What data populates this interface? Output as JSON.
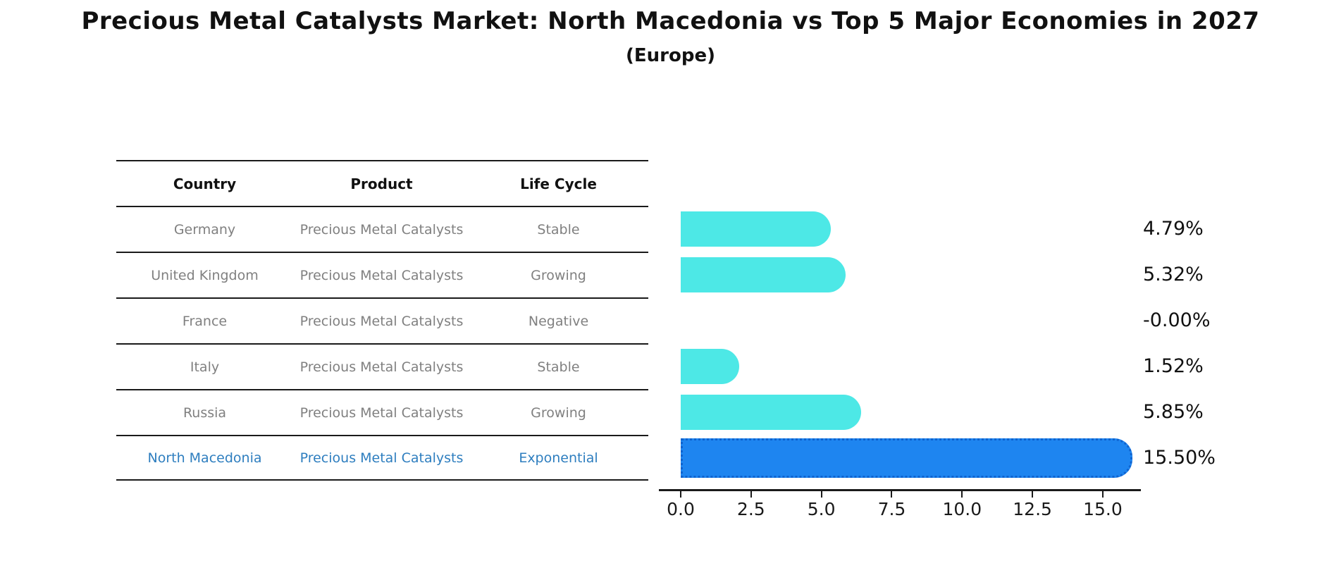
{
  "header": {
    "title": "Precious Metal Catalysts Market: North Macedonia vs Top 5 Major Economies in 2027",
    "subtitle": "(Europe)"
  },
  "table": {
    "columns": [
      "Country",
      "Product",
      "Life Cycle"
    ],
    "rows": [
      {
        "country": "Germany",
        "product": "Precious Metal Catalysts",
        "life_cycle": "Stable",
        "highlighted": false
      },
      {
        "country": "United Kingdom",
        "product": "Precious Metal Catalysts",
        "life_cycle": "Growing",
        "highlighted": false
      },
      {
        "country": "France",
        "product": "Precious Metal Catalysts",
        "life_cycle": "Negative",
        "highlighted": false
      },
      {
        "country": "Italy",
        "product": "Precious Metal Catalysts",
        "life_cycle": "Stable",
        "highlighted": false
      },
      {
        "country": "Russia",
        "product": "Precious Metal Catalysts",
        "life_cycle": "Growing",
        "highlighted": false
      },
      {
        "country": "North Macedonia",
        "product": "Precious Metal Catalysts",
        "life_cycle": "Exponential",
        "highlighted": true
      }
    ]
  },
  "chart_data": {
    "type": "bar",
    "orientation": "horizontal",
    "title": "Precious Metal Catalysts Market: North Macedonia vs Top 5 Major Economies in 2027",
    "subtitle": "(Europe)",
    "categories": [
      "Germany",
      "United Kingdom",
      "France",
      "Italy",
      "Russia",
      "North Macedonia"
    ],
    "values": [
      4.79,
      5.32,
      -0.0,
      1.52,
      5.85,
      15.5
    ],
    "value_labels": [
      "4.79%",
      "5.32%",
      "-0.00%",
      "1.52%",
      "5.85%",
      "15.50%"
    ],
    "highlight_index": 5,
    "x_ticks": [
      0.0,
      2.5,
      5.0,
      7.5,
      10.0,
      12.5,
      15.0
    ],
    "x_tick_labels": [
      "0.0",
      "2.5",
      "5.0",
      "7.5",
      "10.0",
      "12.5",
      "15.0"
    ],
    "xlim": [
      -0.775,
      16.275
    ],
    "grid": false,
    "legend": false,
    "bar_color": "#4de8e6",
    "highlight_bar_color": "#1e85f0",
    "highlight_text_color": "#2e7ebf",
    "bar_style_highlight": "dotted-border"
  }
}
